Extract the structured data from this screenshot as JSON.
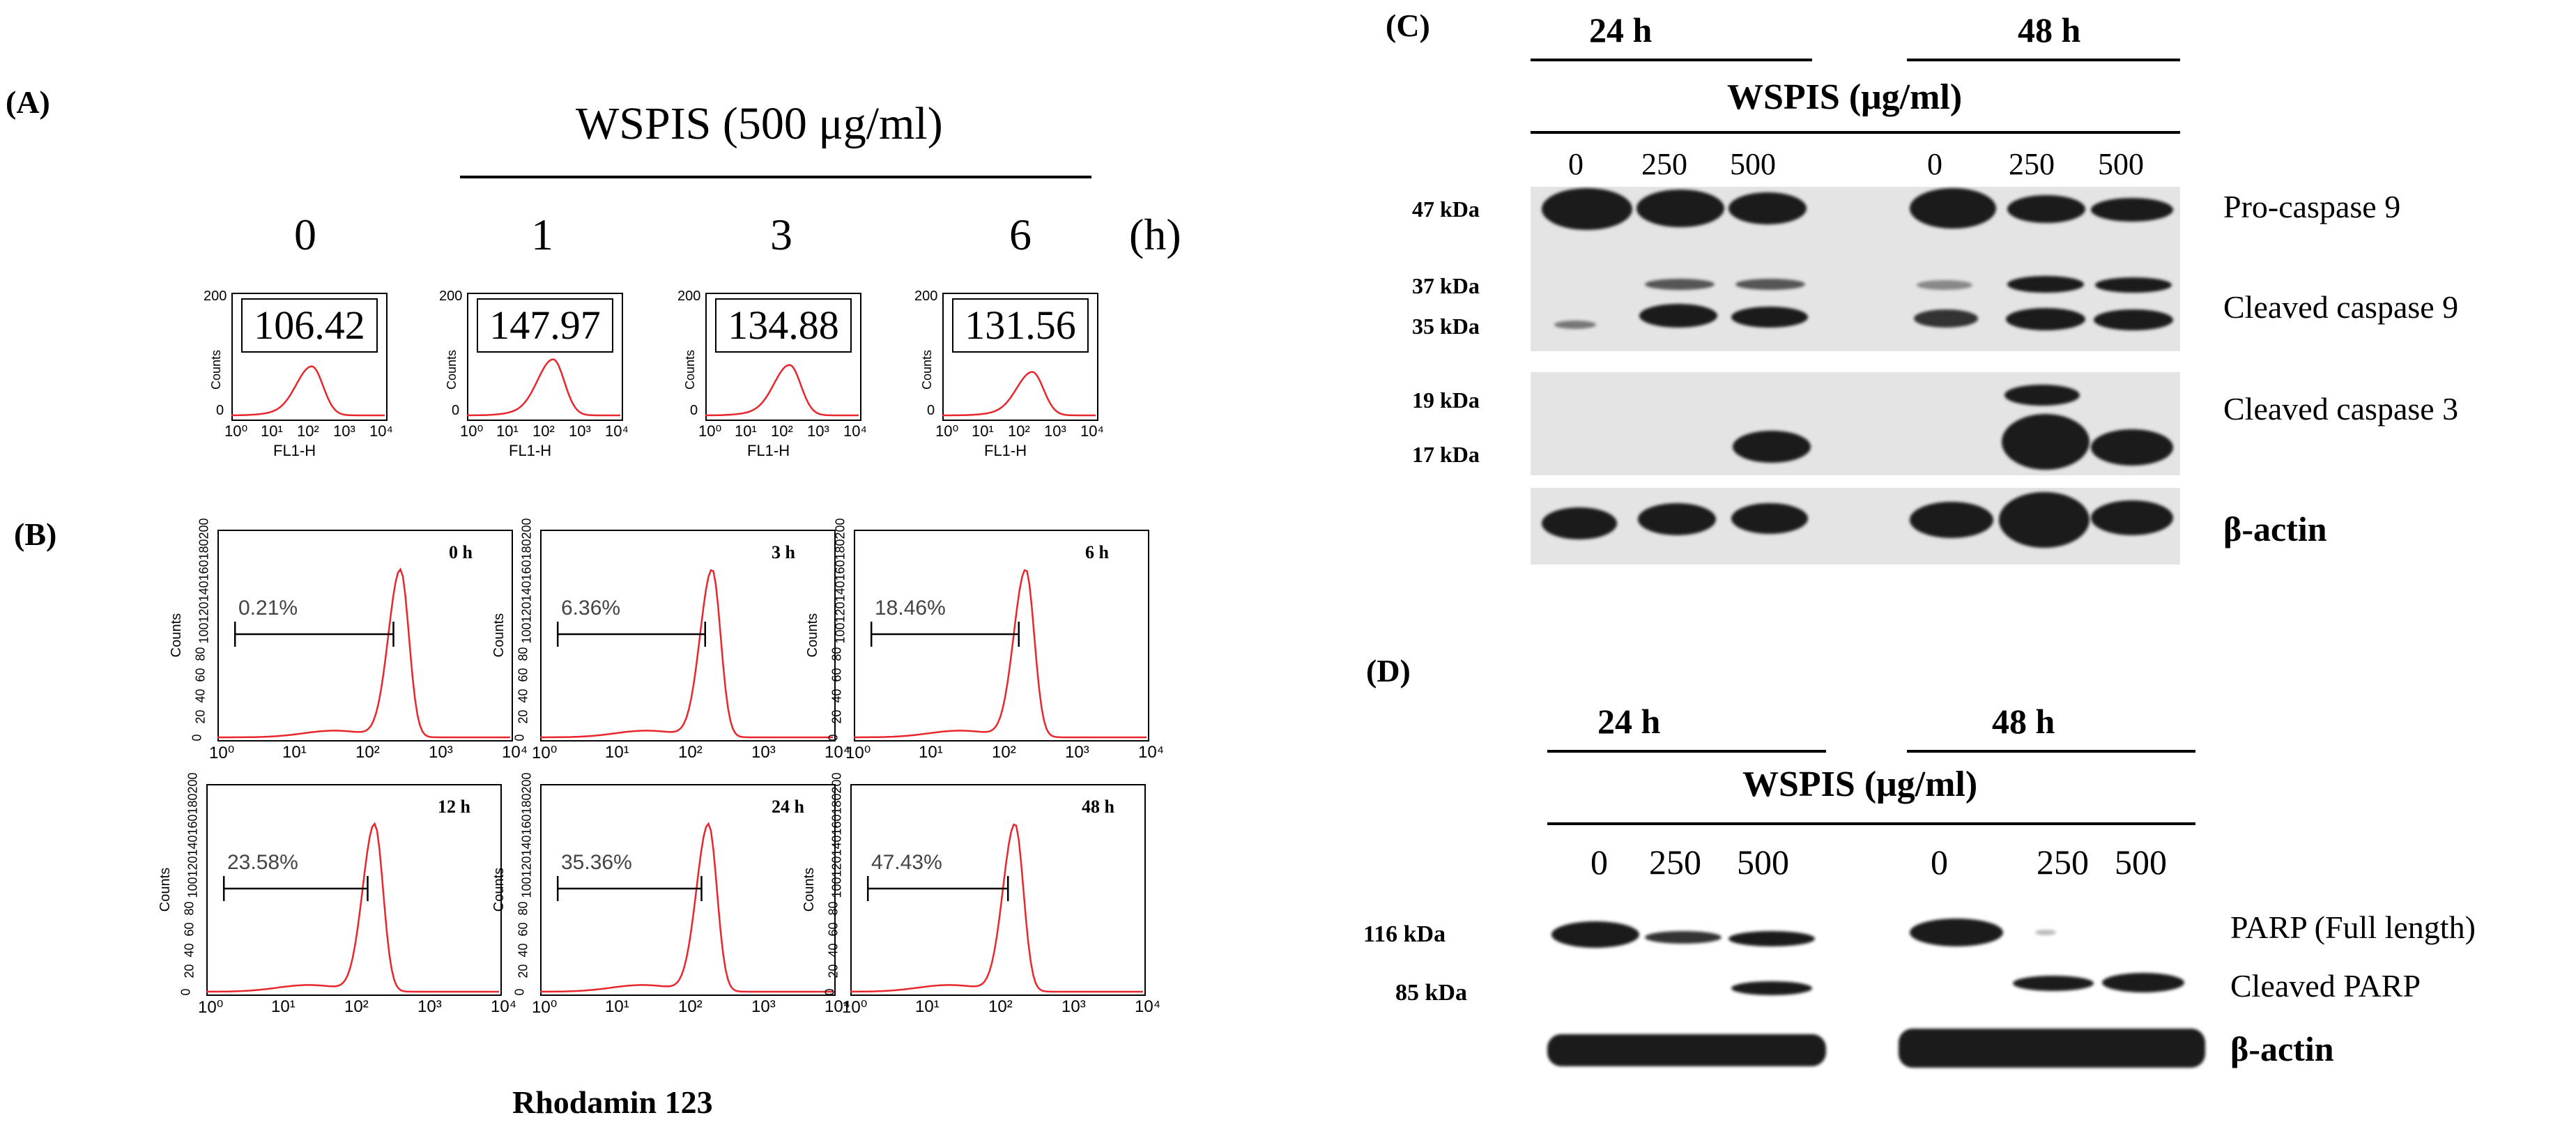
{
  "panel_a": {
    "label": "(A)",
    "treatment": "WSPIS (500 μg/ml)",
    "timepoints": [
      "0",
      "1",
      "3",
      "6"
    ],
    "unit": "(h)",
    "values": [
      "106.42",
      "147.97",
      "134.88",
      "131.56"
    ],
    "y_ticks": [
      "200",
      "0"
    ],
    "y_label": "Counts",
    "x_label": "FL1-H",
    "x_ticks": [
      "10⁰",
      "10¹",
      "10²",
      "10³",
      "10⁴"
    ]
  },
  "panel_b": {
    "label": "(B)",
    "x_title": "Rhodamin 123",
    "y_label": "Counts",
    "y_ticks": [
      "0",
      "20",
      "40",
      "60",
      "80",
      "100",
      "120",
      "140",
      "160",
      "180",
      "200"
    ],
    "x_ticks": [
      "10⁰",
      "10¹",
      "10²",
      "10³",
      "10⁴"
    ],
    "plots": [
      {
        "time": "0 h",
        "percent": "0.21%",
        "peak": 2.5
      },
      {
        "time": "3 h",
        "percent": "6.36%",
        "peak": 2.35
      },
      {
        "time": "6 h",
        "percent": "18.46%",
        "peak": 2.35
      },
      {
        "time": "12 h",
        "percent": "23.58%",
        "peak": 2.3
      },
      {
        "time": "24 h",
        "percent": "35.36%",
        "peak": 2.3
      },
      {
        "time": "48 h",
        "percent": "47.43%",
        "peak": 2.25
      }
    ]
  },
  "panel_c": {
    "label": "(C)",
    "groups": [
      "24 h",
      "48 h"
    ],
    "treatment": "WSPIS (μg/ml)",
    "doses": [
      "0",
      "250",
      "500",
      "0",
      "250",
      "500"
    ],
    "markers": [
      "47 kDa",
      "37 kDa",
      "35 kDa",
      "19 kDa",
      "17 kDa"
    ],
    "proteins": [
      "Pro-caspase 9",
      "Cleaved caspase 9",
      "Cleaved caspase 3",
      "β-actin"
    ]
  },
  "panel_d": {
    "label": "(D)",
    "groups": [
      "24 h",
      "48 h"
    ],
    "treatment": "WSPIS (μg/ml)",
    "doses": [
      "0",
      "250",
      "500",
      "0",
      "250",
      "500"
    ],
    "markers": [
      "116 kDa",
      "85 kDa"
    ],
    "proteins": [
      "PARP (Full length)",
      "Cleaved PARP",
      "β-actin"
    ]
  },
  "colors": {
    "histogram": "#e8262b",
    "band": "#1b1b1b",
    "blot_background": "#e4e4e4"
  }
}
